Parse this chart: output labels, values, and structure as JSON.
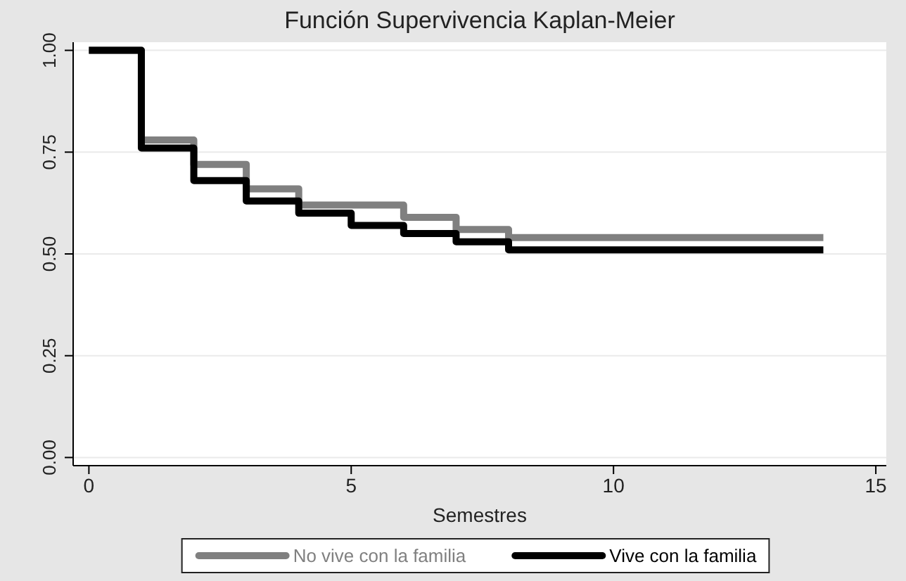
{
  "chart_data": {
    "type": "step",
    "title": "Función Supervivencia Kaplan-Meier",
    "xlabel": "Semestres",
    "xlim": [
      -0.3,
      15.2
    ],
    "xticks": [
      0,
      5,
      10,
      15
    ],
    "ylim": [
      -0.02,
      1.02
    ],
    "yticks": [
      {
        "value": 0,
        "label": "0.00"
      },
      {
        "value": 0.25,
        "label": "0.25"
      },
      {
        "value": 0.5,
        "label": "0.50"
      },
      {
        "value": 0.75,
        "label": "0.75"
      },
      {
        "value": 1,
        "label": "1.00"
      }
    ],
    "grid": "y",
    "legend": "bottom",
    "series": [
      {
        "name": "No vive con la familia",
        "color": "#808080",
        "x": [
          0,
          1,
          2,
          3,
          4,
          6,
          7,
          8,
          14
        ],
        "values": [
          1,
          0.78,
          0.72,
          0.66,
          0.62,
          0.59,
          0.56,
          0.54,
          0.54
        ]
      },
      {
        "name": "Vive con la familia",
        "color": "#000000",
        "x": [
          0,
          1,
          2,
          3,
          4,
          5,
          6,
          7,
          8,
          14
        ],
        "values": [
          1,
          0.76,
          0.68,
          0.63,
          0.6,
          0.57,
          0.55,
          0.53,
          0.51,
          0.51
        ]
      }
    ]
  }
}
